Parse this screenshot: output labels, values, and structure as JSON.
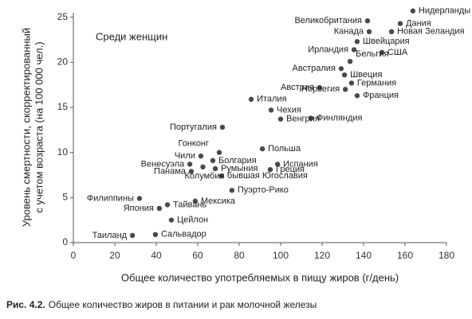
{
  "chart_data": {
    "type": "scatter",
    "annotation": "Среди женщин",
    "xlabel": "Общее количество употребляемых в пищу жиров (г/день)",
    "ylabel": [
      "Уровень смертности, скорректированный",
      "с учетом возраста (на 100 000 чел.)"
    ],
    "caption_label": "Рис. 4.2.",
    "caption_text": "Общее количество жиров в питании и рак молочной железы",
    "color": "#4a4a4a",
    "xlim": [
      0,
      180
    ],
    "xticks": [
      0,
      20,
      40,
      60,
      80,
      100,
      120,
      140,
      160,
      180
    ],
    "ylim": [
      0,
      25.5
    ],
    "yticks": [
      0,
      5,
      10,
      15,
      20,
      25
    ],
    "grid": false,
    "points": [
      {
        "label": "Нидерланды",
        "x": 163.8,
        "y": 25.7
      },
      {
        "label": "Великобритания",
        "x": 141.9,
        "y": 24.6
      },
      {
        "label": "Дания",
        "x": 157.7,
        "y": 24.3
      },
      {
        "label": "Канада",
        "x": 142.7,
        "y": 23.4
      },
      {
        "label": "Новая Зеландия",
        "x": 153.5,
        "y": 23.4
      },
      {
        "label": "Швейцария",
        "x": 136.9,
        "y": 22.3
      },
      {
        "label": "Ирландия",
        "x": 135.4,
        "y": 21.4
      },
      {
        "label": "США",
        "x": 148.8,
        "y": 21.1
      },
      {
        "label": "Бельгия",
        "x": 133.5,
        "y": 20.1
      },
      {
        "label": "Австралия",
        "x": 129.2,
        "y": 19.3
      },
      {
        "label": "Швеция",
        "x": 130.8,
        "y": 18.6
      },
      {
        "label": "Германия",
        "x": 134.2,
        "y": 17.7
      },
      {
        "label": "Австрия",
        "x": 118.8,
        "y": 17.2
      },
      {
        "label": "Норвегия",
        "x": 131.2,
        "y": 17.0
      },
      {
        "label": "Франция",
        "x": 136.9,
        "y": 16.3
      },
      {
        "label": "Италия",
        "x": 85.8,
        "y": 15.9
      },
      {
        "label": "Чехия",
        "x": 95.4,
        "y": 14.7
      },
      {
        "label": "Финляндия",
        "x": 114.6,
        "y": 13.8
      },
      {
        "label": "Венгрия",
        "x": 100,
        "y": 13.7
      },
      {
        "label": "Португалия",
        "x": 71.9,
        "y": 12.8
      },
      {
        "label": "Польша",
        "x": 91.2,
        "y": 10.4
      },
      {
        "label": "Гонконг",
        "x": 70.4,
        "y": 10.0
      },
      {
        "label": "Чили",
        "x": 61.5,
        "y": 9.6
      },
      {
        "label": "Болгария",
        "x": 67.3,
        "y": 9.1
      },
      {
        "label": "Испания",
        "x": 98.5,
        "y": 8.7
      },
      {
        "label": "Венесуэла",
        "x": 56.2,
        "y": 8.7
      },
      {
        "label": "Румыния",
        "x": 68.5,
        "y": 8.2
      },
      {
        "label": "Греция",
        "x": 95.0,
        "y": 8.1
      },
      {
        "label": "Панама",
        "x": 56.9,
        "y": 7.9
      },
      {
        "label": "бывшая Югославия",
        "x": 71.5,
        "y": 7.4
      },
      {
        "label": "Колумбия",
        "x": 62.5,
        "y": 8.4
      },
      {
        "label": "Пуэрто-Рико",
        "x": 76.5,
        "y": 5.8
      },
      {
        "label": "Филиппины",
        "x": 31.9,
        "y": 4.9
      },
      {
        "label": "Мексика",
        "x": 58.8,
        "y": 4.6
      },
      {
        "label": "Тайвань",
        "x": 45.4,
        "y": 4.2
      },
      {
        "label": "Япония",
        "x": 41.5,
        "y": 3.8
      },
      {
        "label": "Цейлон",
        "x": 47.3,
        "y": 2.5
      },
      {
        "label": "Сальвадор",
        "x": 39.6,
        "y": 0.9
      },
      {
        "label": "Таиланд",
        "x": 28.5,
        "y": 0.8
      }
    ]
  }
}
